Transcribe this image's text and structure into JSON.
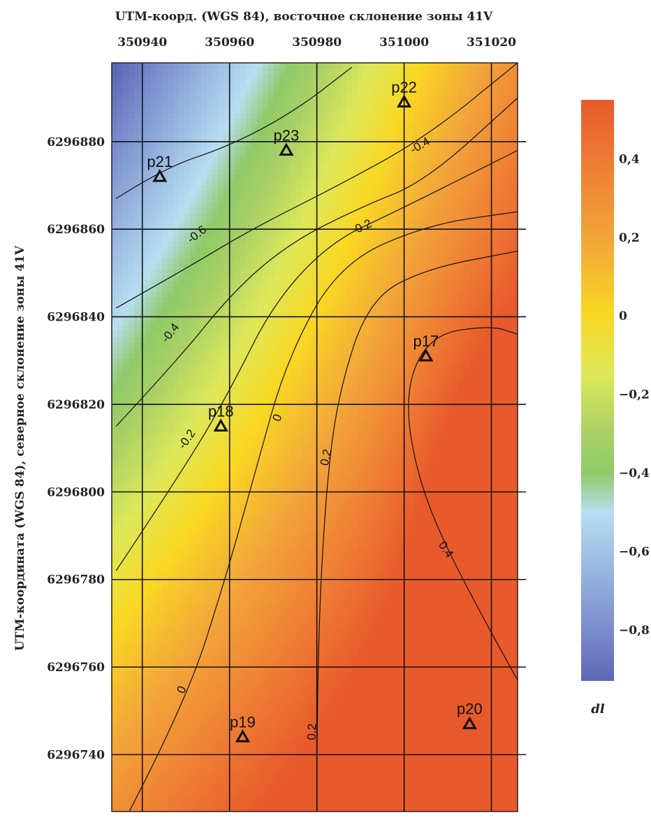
{
  "chart_data": {
    "type": "heatmap",
    "subtype": "contour",
    "title": "UTM-коорд. (WGS 84), восточное склонение зоны 41V",
    "ylabel": "UTM-координата (WGS 84), северное склонение зоны 41V",
    "x_ticks": [
      350940,
      350960,
      350980,
      351000,
      351020
    ],
    "x_tick_labels": [
      "350940",
      "350960",
      "350980",
      "351000",
      "351020"
    ],
    "y_ticks": [
      6296880,
      6296860,
      6296840,
      6296820,
      6296800,
      6296780,
      6296760,
      6296740
    ],
    "y_tick_labels": [
      "6296880",
      "6296860",
      "6296840",
      "6296820",
      "6296800",
      "6296780",
      "6296760",
      "6296740"
    ],
    "xlim": [
      350933,
      351026
    ],
    "ylim": [
      6296727,
      6296898
    ],
    "grid": true,
    "colorbar": {
      "label": "dl",
      "range": [
        -0.93,
        0.55
      ],
      "ticks": [
        0.4,
        0.2,
        0,
        -0.2,
        -0.4,
        -0.6,
        -0.8
      ],
      "tick_labels": [
        "0,4",
        "0,2",
        "0",
        "−0,2",
        "−0,4",
        "−0,6",
        "−0,8"
      ],
      "colors": [
        {
          "v": -0.93,
          "c": "#5d67b6"
        },
        {
          "v": -0.8,
          "c": "#7a8ccd"
        },
        {
          "v": -0.6,
          "c": "#a2c3e6"
        },
        {
          "v": -0.5,
          "c": "#b8def0"
        },
        {
          "v": -0.4,
          "c": "#8fca68"
        },
        {
          "v": -0.3,
          "c": "#a9d066"
        },
        {
          "v": -0.15,
          "c": "#dde85a"
        },
        {
          "v": 0.0,
          "c": "#f9d823"
        },
        {
          "v": 0.2,
          "c": "#f2a43a"
        },
        {
          "v": 0.4,
          "c": "#ee7a33"
        },
        {
          "v": 0.55,
          "c": "#e85a2c"
        }
      ]
    },
    "stations": [
      {
        "name": "p21",
        "x": 350944,
        "y": 6296872
      },
      {
        "name": "p23",
        "x": 350973,
        "y": 6296878
      },
      {
        "name": "p22",
        "x": 351000,
        "y": 6296889
      },
      {
        "name": "p17",
        "x": 351005,
        "y": 6296831
      },
      {
        "name": "p18",
        "x": 350958,
        "y": 6296815
      },
      {
        "name": "p19",
        "x": 350963,
        "y": 6296744
      },
      {
        "name": "p20",
        "x": 351015,
        "y": 6296747
      }
    ],
    "contour_labels": [
      "-0.6",
      "-0.4",
      "-0.2",
      "0",
      "0.2",
      "0.4",
      "-0.4",
      "-0.2",
      "0",
      "0.2",
      "0.4"
    ],
    "contours": [
      {
        "level": "-0.6",
        "points": [
          [
            350934,
            6296867
          ],
          [
            350945,
            6296874
          ],
          [
            350960,
            6296879
          ],
          [
            350975,
            6296887
          ],
          [
            350988,
            6296897
          ]
        ]
      },
      {
        "level": "-0.6",
        "points": [
          [
            350934,
            6296842
          ],
          [
            350950,
            6296851
          ],
          [
            350965,
            6296860
          ],
          [
            350985,
            6296870
          ],
          [
            351005,
            6296881
          ],
          [
            351026,
            6296898
          ]
        ]
      },
      {
        "level": "-0.4",
        "points": [
          [
            350934,
            6296815
          ],
          [
            350948,
            6296830
          ],
          [
            350961,
            6296846
          ],
          [
            350974,
            6296857
          ],
          [
            350990,
            6296865
          ],
          [
            351005,
            6296871
          ],
          [
            351026,
            6296890
          ]
        ]
      },
      {
        "level": "-0.2",
        "points": [
          [
            350934,
            6296782
          ],
          [
            350950,
            6296806
          ],
          [
            350960,
            6296823
          ],
          [
            350970,
            6296843
          ],
          [
            350983,
            6296857
          ],
          [
            350998,
            6296864
          ],
          [
            351026,
            6296878
          ]
        ]
      },
      {
        "level": "0",
        "points": [
          [
            350937,
            6296727
          ],
          [
            350950,
            6296752
          ],
          [
            350959,
            6296780
          ],
          [
            350966,
            6296805
          ],
          [
            350973,
            6296830
          ],
          [
            350985,
            6296852
          ],
          [
            351005,
            6296861
          ],
          [
            351026,
            6296864
          ]
        ]
      },
      {
        "level": "0.2",
        "points": [
          [
            350980,
            6296727
          ],
          [
            350980,
            6296760
          ],
          [
            350982,
            6296800
          ],
          [
            350985,
            6296823
          ],
          [
            350992,
            6296844
          ],
          [
            351005,
            6296851
          ],
          [
            351026,
            6296855
          ]
        ]
      },
      {
        "level": "0.4",
        "points": [
          [
            351026,
            6296757
          ],
          [
            351012,
            6296782
          ],
          [
            351003,
            6296803
          ],
          [
            351000,
            6296823
          ],
          [
            351006,
            6296836
          ],
          [
            351020,
            6296838
          ],
          [
            351026,
            6296836
          ]
        ]
      }
    ]
  }
}
